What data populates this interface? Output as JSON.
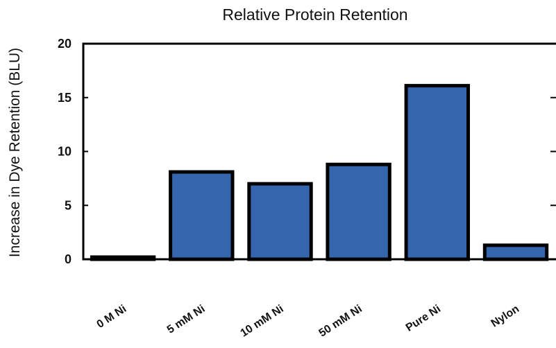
{
  "chart_data": {
    "type": "bar",
    "title": "Relative Protein Retention",
    "xlabel": "",
    "ylabel": "Increase in Dye Retention (BLU)",
    "categories": [
      "0 M Ni",
      "5 mM Ni",
      "10 mM Ni",
      "50 mM Ni",
      "Pure Ni",
      "Nylon"
    ],
    "values": [
      0.2,
      8.1,
      7.0,
      8.8,
      16.1,
      1.3
    ],
    "ylim": [
      0,
      20
    ],
    "yticks": [
      "0",
      "5",
      "10",
      "15",
      "20"
    ],
    "bar_color": "#3566ad",
    "bar_outline_color": "#000000",
    "grid": false,
    "legend": "none"
  }
}
